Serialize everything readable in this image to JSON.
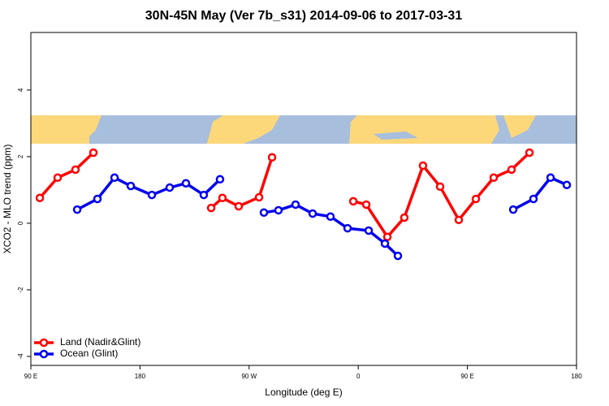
{
  "chart_data": {
    "type": "line",
    "title": "30N-45N May (Ver 7b_s31)   2014-09-06 to 2017-03-31",
    "x_label": "Longitude (deg E)",
    "y_label": "XCO2 - MLO trend (ppm)",
    "xlim": [
      90,
      540
    ],
    "ylim": [
      -4.27,
      5.73
    ],
    "xticks": [
      {
        "value": 90,
        "label": "90 E"
      },
      {
        "value": 180,
        "label": "180"
      },
      {
        "value": 270,
        "label": "90 W"
      },
      {
        "value": 360,
        "label": "0"
      },
      {
        "value": 450,
        "label": "90 E"
      },
      {
        "value": 540,
        "label": "180"
      }
    ],
    "yticks": [
      -4,
      -2,
      0,
      2,
      4
    ],
    "legend": "bottom-left",
    "series": [
      {
        "name": "Land (Nadir&Glint)",
        "color": "#ff0000",
        "x": [
          97.4,
          112.1,
          126.8,
          141.6,
          null,
          238.7,
          248,
          261.4,
          278.2,
          288.9,
          null,
          355.9,
          366.6,
          384,
          398,
          413.4,
          427.5,
          442.9,
          457,
          471.7,
          486.4,
          501.2
        ],
        "values": [
          0.76,
          1.37,
          1.61,
          2.12,
          null,
          0.46,
          0.76,
          0.51,
          0.78,
          1.98,
          null,
          0.66,
          0.56,
          -0.41,
          0.17,
          1.73,
          1.1,
          0.1,
          0.73,
          1.37,
          1.61,
          2.12
        ]
      },
      {
        "name": "Ocean (Glint)",
        "color": "#0000ee",
        "x": [
          128.2,
          144.9,
          159,
          172.4,
          189.8,
          204.5,
          217.9,
          232.6,
          246,
          null,
          282.2,
          294.2,
          308.3,
          322.4,
          337.1,
          351.2,
          368.6,
          382,
          392.7,
          null,
          487.8,
          504.5,
          518.6,
          532
        ],
        "values": [
          0.41,
          0.73,
          1.37,
          1.12,
          0.85,
          1.07,
          1.2,
          0.85,
          1.32,
          null,
          0.32,
          0.39,
          0.56,
          0.29,
          0.2,
          -0.15,
          -0.22,
          -0.61,
          -0.98,
          null,
          0.41,
          0.73,
          1.37,
          1.15
        ]
      }
    ]
  }
}
